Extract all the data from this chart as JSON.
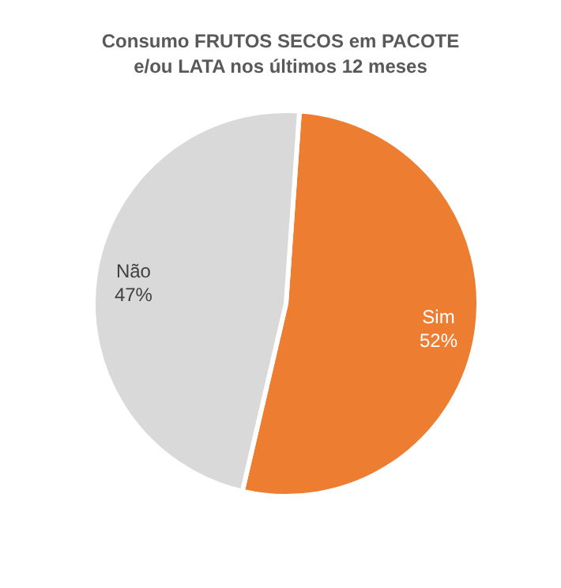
{
  "chart_data": {
    "type": "pie",
    "title": "Consumo FRUTOS SECOS em PACOTE\ne/ou LATA nos últimos 12 meses",
    "categories": [
      "Sim",
      "Não"
    ],
    "values": [
      52,
      47
    ],
    "value_labels": [
      "52%",
      "47%"
    ],
    "colors": [
      "#ed7d31",
      "#d9d9d9"
    ]
  }
}
